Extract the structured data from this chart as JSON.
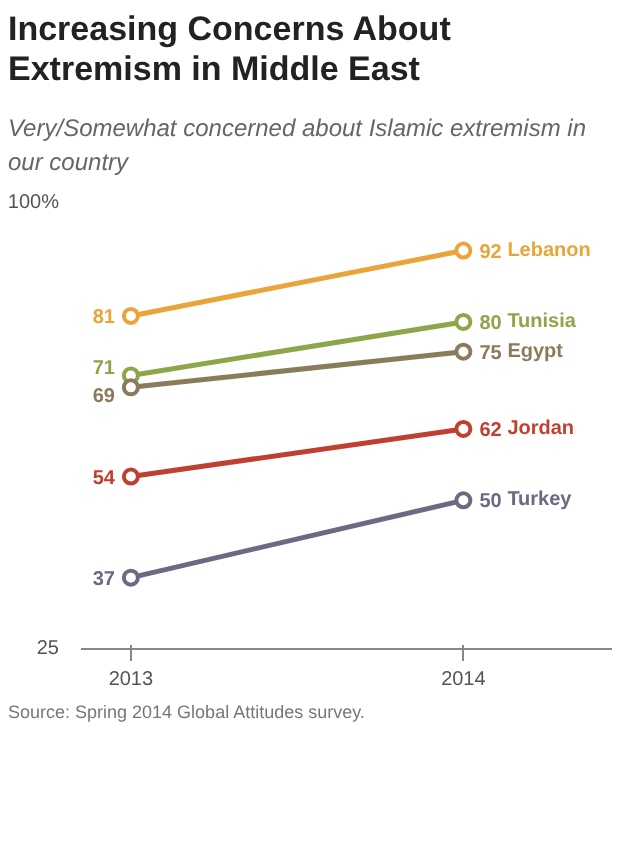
{
  "chart_data": {
    "type": "line",
    "title": "Increasing Concerns About Extremism in Middle East",
    "subtitle": "Very/Somewhat concerned about Islamic extremism in our country",
    "x": [
      2013,
      2014
    ],
    "xlim": [
      2012.85,
      2014.45
    ],
    "xticks": [
      2013,
      2014
    ],
    "ylim": [
      25,
      100
    ],
    "yticks": [
      25,
      {
        "value": 100,
        "label": "100%"
      }
    ],
    "series": [
      {
        "name": "Lebanon",
        "color": "#e9a53a",
        "values": [
          81,
          92
        ]
      },
      {
        "name": "Tunisia",
        "color": "#8ea64a",
        "values": [
          71,
          80
        ]
      },
      {
        "name": "Egypt",
        "color": "#8a7b5a",
        "values": [
          69,
          75
        ]
      },
      {
        "name": "Jordan",
        "color": "#c0402f",
        "values": [
          54,
          62
        ]
      },
      {
        "name": "Turkey",
        "color": "#6c6a82",
        "values": [
          37,
          50
        ]
      }
    ],
    "data_labels": true,
    "marker": "circle",
    "line_style": "solid",
    "grid": false,
    "annotations": [
      "Source: Spring 2014 Global Attitudes survey."
    ]
  }
}
